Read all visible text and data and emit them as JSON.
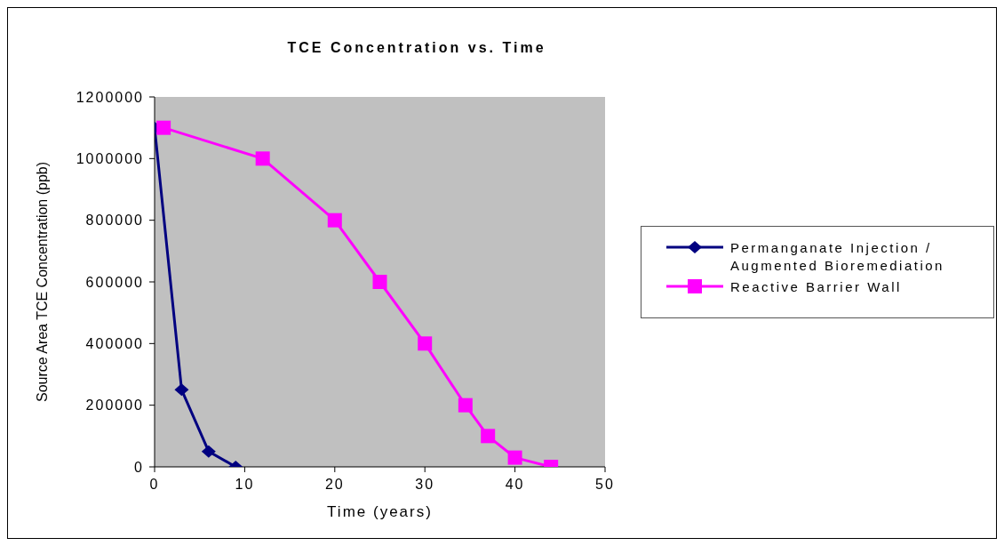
{
  "chart_data": {
    "type": "line",
    "title": "TCE Concentration vs. Time",
    "xlabel": "Time (years)",
    "ylabel": "Source Area TCE Concentration (ppb)",
    "xlim": [
      0,
      50
    ],
    "xticks": [
      0,
      10,
      20,
      30,
      40,
      50
    ],
    "ylim": [
      0,
      1200000
    ],
    "yticks": [
      0,
      200000,
      400000,
      600000,
      800000,
      1000000,
      1200000
    ],
    "grid": false,
    "legend": "right",
    "line_style": "solid",
    "series": [
      {
        "name": "Permanganate Injection / Augmented Bioremediation",
        "color": "#000080",
        "marker": "diamond",
        "x": [
          0,
          3,
          6,
          9
        ],
        "values": [
          1100000,
          250000,
          50000,
          0
        ]
      },
      {
        "name": "Reactive Barrier Wall",
        "color": "#ff00ff",
        "marker": "square",
        "x": [
          1,
          12,
          20,
          25,
          30,
          34.5,
          37,
          40,
          44
        ],
        "values": [
          1100000,
          1000000,
          800000,
          600000,
          400000,
          200000,
          100000,
          30000,
          0
        ]
      }
    ]
  }
}
